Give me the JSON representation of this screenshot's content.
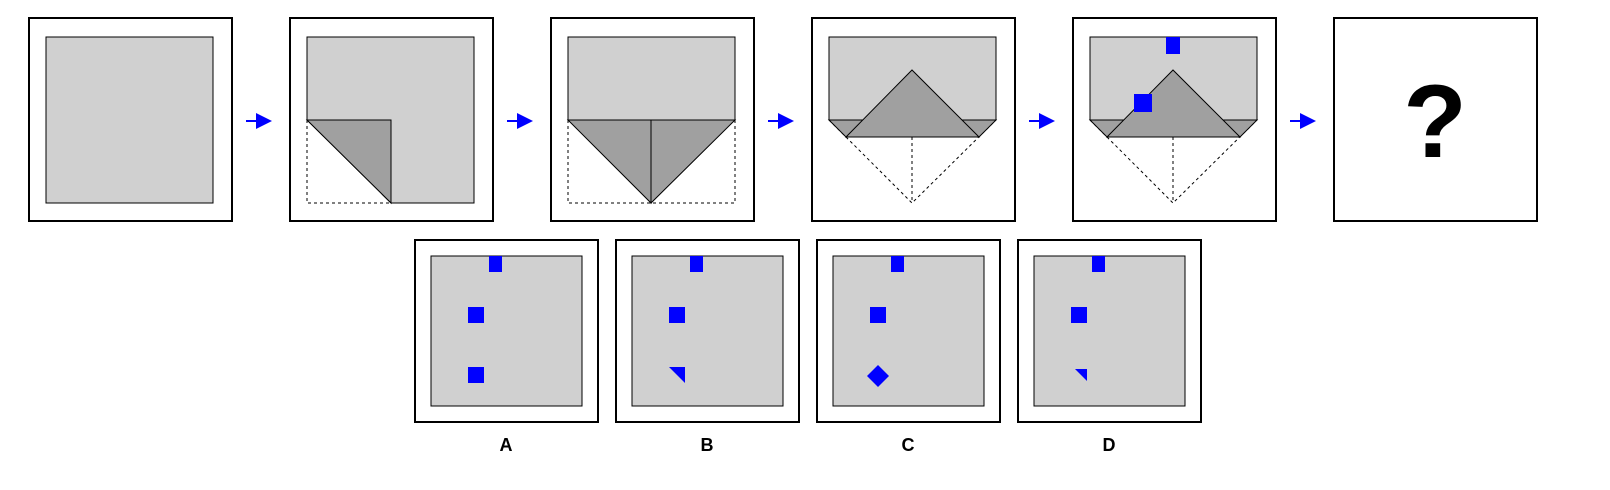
{
  "colors": {
    "paper": "#d0d0d0",
    "fold": "#a0a0a0",
    "hole": "#0000ff",
    "arrow": "#0000ff",
    "frame": "#000000",
    "background": "#ffffff"
  },
  "sequence": {
    "steps": [
      {
        "name": "step-1-unfolded"
      },
      {
        "name": "step-2-corner-fold"
      },
      {
        "name": "step-3-both-corners-folded"
      },
      {
        "name": "step-4-triangle-folded-up"
      },
      {
        "name": "step-5-punched-holes"
      }
    ],
    "question_mark": "?"
  },
  "options": [
    {
      "label": "A"
    },
    {
      "label": "B"
    },
    {
      "label": "C"
    },
    {
      "label": "D"
    }
  ]
}
